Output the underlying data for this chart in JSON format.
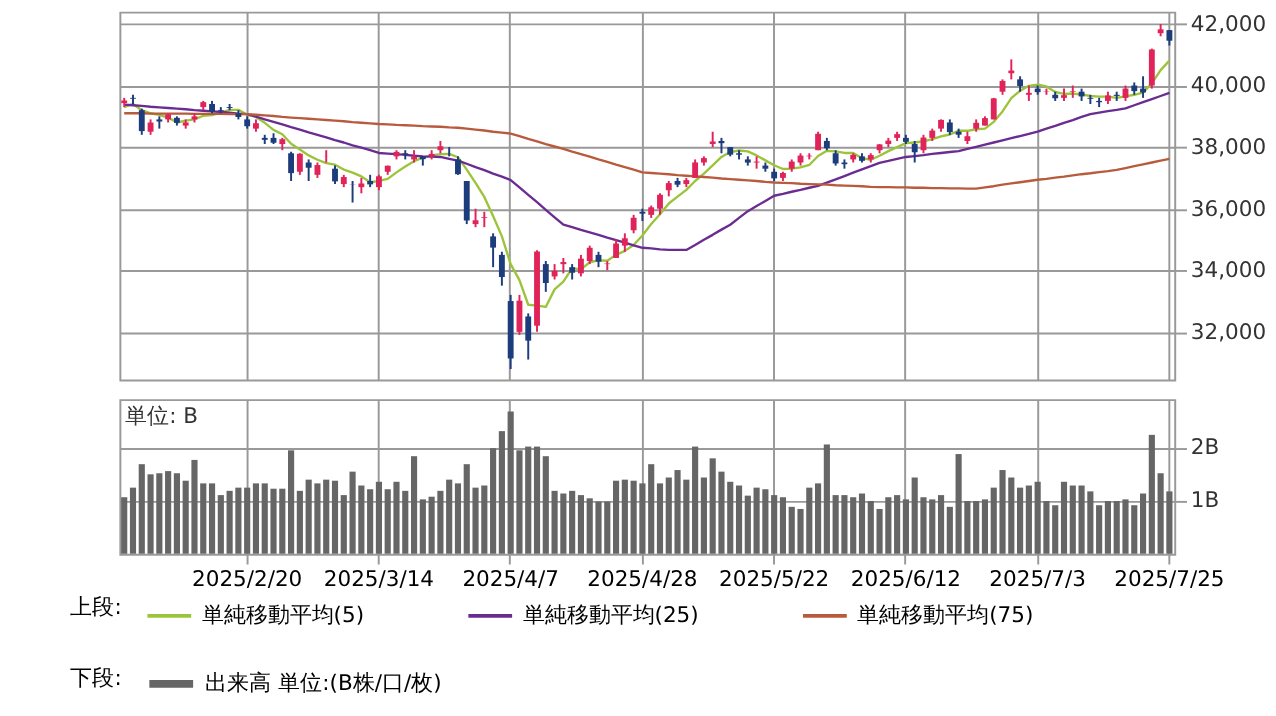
{
  "chart_data": [
    {
      "type": "candlestick",
      "legend": "bottom",
      "legend_title": "上段:",
      "grid": true,
      "tick_labels": "y",
      "categories": [
        null,
        null,
        null,
        null,
        null,
        null,
        null,
        null,
        null,
        null,
        null,
        null,
        null,
        null,
        "2025/2/20",
        null,
        null,
        null,
        null,
        null,
        null,
        null,
        null,
        null,
        null,
        null,
        null,
        null,
        null,
        "2025/3/14",
        null,
        null,
        null,
        null,
        null,
        null,
        null,
        null,
        null,
        null,
        null,
        null,
        null,
        null,
        "2025/4/7",
        null,
        null,
        null,
        null,
        null,
        null,
        null,
        null,
        null,
        null,
        null,
        null,
        null,
        null,
        "2025/4/28",
        null,
        null,
        null,
        null,
        null,
        null,
        null,
        null,
        null,
        null,
        null,
        null,
        null,
        null,
        "2025/5/22",
        null,
        null,
        null,
        null,
        null,
        null,
        null,
        null,
        null,
        null,
        null,
        null,
        null,
        null,
        "2025/6/12",
        null,
        null,
        null,
        null,
        null,
        null,
        null,
        null,
        null,
        null,
        null,
        null,
        null,
        null,
        "2025/7/3",
        null,
        null,
        null,
        null,
        null,
        null,
        null,
        null,
        null,
        null,
        null,
        null,
        null,
        null,
        "2025/7/25"
      ],
      "ylim": [
        30450,
        42400
      ],
      "yticks": [
        {
          "value": 32000,
          "label": "32,000"
        },
        {
          "value": 34000,
          "label": "34,000"
        },
        {
          "value": 36000,
          "label": "36,000"
        },
        {
          "value": 38000,
          "label": "38,000"
        },
        {
          "value": 40000,
          "label": "40,000"
        },
        {
          "value": 42000,
          "label": "42,000"
        }
      ],
      "ohlc": [
        [
          39430,
          39600,
          39300,
          39514
        ],
        [
          39600,
          39700,
          39400,
          39572
        ],
        [
          39200,
          39250,
          38400,
          38520
        ],
        [
          38500,
          38900,
          38400,
          38798
        ],
        [
          38900,
          39000,
          38600,
          38831
        ],
        [
          38900,
          39100,
          38800,
          39066
        ],
        [
          38950,
          39000,
          38700,
          38787
        ],
        [
          38700,
          38900,
          38600,
          38801
        ],
        [
          38900,
          39100,
          38800,
          39000
        ],
        [
          39300,
          39500,
          39200,
          39461
        ],
        [
          39400,
          39500,
          39100,
          39149
        ],
        [
          39200,
          39300,
          39100,
          39174
        ],
        [
          39300,
          39400,
          39200,
          39270
        ],
        [
          39100,
          39200,
          38900,
          38978
        ],
        [
          38900,
          39000,
          38600,
          38678
        ],
        [
          38600,
          38900,
          38500,
          38776
        ],
        [
          38300,
          38400,
          38100,
          38237
        ],
        [
          38300,
          38450,
          38100,
          38142
        ],
        [
          38100,
          38300,
          37900,
          38256
        ],
        [
          37800,
          37850,
          36900,
          37155
        ],
        [
          37200,
          37800,
          37100,
          37785
        ],
        [
          37500,
          37600,
          36900,
          37331
        ],
        [
          37100,
          37500,
          37000,
          37418
        ],
        [
          37700,
          37900,
          37500,
          37704
        ],
        [
          37300,
          37400,
          36800,
          36887
        ],
        [
          36800,
          37100,
          36700,
          37028
        ],
        [
          36800,
          36900,
          36200,
          36793
        ],
        [
          36700,
          37000,
          36500,
          36819
        ],
        [
          36900,
          37100,
          36700,
          36790
        ],
        [
          36700,
          37100,
          36600,
          37053
        ],
        [
          37200,
          37400,
          37100,
          37396
        ],
        [
          37700,
          37900,
          37600,
          37845
        ],
        [
          37800,
          37900,
          37600,
          37751
        ],
        [
          37600,
          37900,
          37500,
          37677
        ],
        [
          37700,
          37700,
          37400,
          37608
        ],
        [
          37700,
          37900,
          37600,
          37780
        ],
        [
          37900,
          38200,
          37800,
          38027
        ],
        [
          37800,
          38000,
          37700,
          37799
        ],
        [
          37600,
          37700,
          37100,
          37120
        ],
        [
          36900,
          36900,
          35500,
          35617
        ],
        [
          35500,
          36000,
          35400,
          35624
        ],
        [
          35700,
          35900,
          35400,
          35725
        ],
        [
          35100,
          35200,
          34100,
          34736
        ],
        [
          34500,
          34600,
          33500,
          33780
        ],
        [
          33000,
          33200,
          30792,
          31136
        ],
        [
          32000,
          33200,
          31900,
          33012
        ],
        [
          32500,
          32600,
          31100,
          31714
        ],
        [
          32200,
          34650,
          32000,
          34609
        ],
        [
          34200,
          34300,
          33300,
          33586
        ],
        [
          33800,
          34200,
          33700,
          33982
        ],
        [
          34200,
          34400,
          33900,
          34267
        ],
        [
          34100,
          34200,
          33700,
          33920
        ],
        [
          33900,
          34500,
          33800,
          34377
        ],
        [
          34300,
          34800,
          34200,
          34730
        ],
        [
          34500,
          34600,
          34100,
          34280
        ],
        [
          34200,
          34300,
          34000,
          34220
        ],
        [
          34400,
          35000,
          34400,
          34868
        ],
        [
          34800,
          35200,
          34600,
          35039
        ],
        [
          35300,
          35800,
          35200,
          35705
        ],
        [
          35900,
          36000,
          35600,
          35839
        ],
        [
          35800,
          36100,
          35700,
          36045
        ],
        [
          36000,
          36500,
          35800,
          36452
        ],
        [
          36600,
          36900,
          36400,
          36831
        ],
        [
          36900,
          37000,
          36700,
          36780
        ],
        [
          36800,
          37000,
          36700,
          36928
        ],
        [
          37000,
          37600,
          37000,
          37503
        ],
        [
          37500,
          37700,
          37400,
          37644
        ],
        [
          38100,
          38500,
          38000,
          38183
        ],
        [
          38200,
          38300,
          37800,
          38128
        ],
        [
          38000,
          38000,
          37700,
          37755
        ],
        [
          37800,
          37900,
          37600,
          37753
        ],
        [
          37600,
          37700,
          37400,
          37498
        ],
        [
          37500,
          37700,
          37300,
          37529
        ],
        [
          37400,
          37500,
          37200,
          37299
        ],
        [
          37200,
          37300,
          36900,
          36985
        ],
        [
          37000,
          37200,
          36900,
          37160
        ],
        [
          37300,
          37600,
          37200,
          37531
        ],
        [
          37500,
          37800,
          37400,
          37724
        ],
        [
          37700,
          37800,
          37600,
          37722
        ],
        [
          37900,
          38500,
          37900,
          38433
        ],
        [
          38200,
          38300,
          37900,
          37965
        ],
        [
          37800,
          37900,
          37400,
          37470
        ],
        [
          37500,
          37600,
          37300,
          37446
        ],
        [
          37600,
          37800,
          37500,
          37747
        ],
        [
          37700,
          37800,
          37500,
          37554
        ],
        [
          37600,
          37800,
          37500,
          37741
        ],
        [
          37900,
          38100,
          37800,
          38088
        ],
        [
          38100,
          38300,
          38000,
          38211
        ],
        [
          38300,
          38500,
          38200,
          38421
        ],
        [
          38300,
          38400,
          38100,
          38173
        ],
        [
          38100,
          38200,
          37500,
          37834
        ],
        [
          37900,
          38400,
          37800,
          38311
        ],
        [
          38300,
          38600,
          38200,
          38536
        ],
        [
          38600,
          38900,
          38500,
          38885
        ],
        [
          38800,
          38900,
          38400,
          38488
        ],
        [
          38500,
          38600,
          38300,
          38403
        ],
        [
          38200,
          38500,
          38100,
          38354
        ],
        [
          38600,
          38900,
          38500,
          38790
        ],
        [
          38700,
          39000,
          38700,
          38942
        ],
        [
          38900,
          39600,
          38900,
          39584
        ],
        [
          39800,
          40200,
          39700,
          40150
        ],
        [
          40400,
          40850,
          40200,
          40487
        ],
        [
          40200,
          40300,
          39800,
          39986
        ],
        [
          39700,
          40000,
          39500,
          39762
        ],
        [
          39900,
          40000,
          39700,
          39785
        ],
        [
          39800,
          39900,
          39700,
          39811
        ],
        [
          39700,
          39800,
          39500,
          39587
        ],
        [
          39600,
          39900,
          39500,
          39688
        ],
        [
          39800,
          40000,
          39600,
          39821
        ],
        [
          39800,
          39900,
          39500,
          39646
        ],
        [
          39600,
          39700,
          39400,
          39570
        ],
        [
          39500,
          39600,
          39300,
          39459
        ],
        [
          39500,
          39800,
          39400,
          39678
        ],
        [
          39700,
          39800,
          39500,
          39663
        ],
        [
          39600,
          40000,
          39500,
          39901
        ],
        [
          40000,
          40100,
          39700,
          39819
        ],
        [
          39900,
          40300,
          39600,
          39774
        ],
        [
          40000,
          41200,
          39900,
          41171
        ],
        [
          41700,
          42000,
          41600,
          41826
        ],
        [
          41800,
          41800,
          41300,
          41456
        ]
      ],
      "colors": [
        "#e0245a",
        "#1d3c7c",
        "#1d3c7c",
        "#e0245a",
        "#1d3c7c",
        "#e0245a",
        "#1d3c7c",
        "#e0245a",
        "#e0245a",
        "#e0245a",
        "#1d3c7c",
        "#1d3c7c",
        "#1d3c7c",
        "#1d3c7c",
        "#1d3c7c",
        "#e0245a",
        "#1d3c7c",
        "#1d3c7c",
        "#e0245a",
        "#1d3c7c",
        "#e0245a",
        "#1d3c7c",
        "#e0245a",
        "#e0245a",
        "#1d3c7c",
        "#e0245a",
        "#1d3c7c",
        "#e0245a",
        "#1d3c7c",
        "#e0245a",
        "#e0245a",
        "#e0245a",
        "#1d3c7c",
        "#e0245a",
        "#1d3c7c",
        "#e0245a",
        "#e0245a",
        "#1d3c7c",
        "#1d3c7c",
        "#1d3c7c",
        "#e0245a",
        "#e0245a",
        "#1d3c7c",
        "#1d3c7c",
        "#1d3c7c",
        "#e0245a",
        "#1d3c7c",
        "#e0245a",
        "#1d3c7c",
        "#e0245a",
        "#e0245a",
        "#1d3c7c",
        "#e0245a",
        "#e0245a",
        "#1d3c7c",
        "#e0245a",
        "#e0245a",
        "#e0245a",
        "#e0245a",
        "#1d3c7c",
        "#e0245a",
        "#e0245a",
        "#e0245a",
        "#1d3c7c",
        "#e0245a",
        "#e0245a",
        "#e0245a",
        "#e0245a",
        "#1d3c7c",
        "#1d3c7c",
        "#1d3c7c",
        "#1d3c7c",
        "#e0245a",
        "#1d3c7c",
        "#1d3c7c",
        "#e0245a",
        "#e0245a",
        "#e0245a",
        "#e0245a",
        "#e0245a",
        "#1d3c7c",
        "#1d3c7c",
        "#1d3c7c",
        "#e0245a",
        "#1d3c7c",
        "#e0245a",
        "#e0245a",
        "#e0245a",
        "#e0245a",
        "#1d3c7c",
        "#1d3c7c",
        "#e0245a",
        "#e0245a",
        "#e0245a",
        "#1d3c7c",
        "#1d3c7c",
        "#e0245a",
        "#e0245a",
        "#e0245a",
        "#e0245a",
        "#e0245a",
        "#e0245a",
        "#1d3c7c",
        "#e0245a",
        "#1d3c7c",
        "#e0245a",
        "#1d3c7c",
        "#e0245a",
        "#e0245a",
        "#1d3c7c",
        "#1d3c7c",
        "#1d3c7c",
        "#e0245a",
        "#1d3c7c",
        "#e0245a",
        "#1d3c7c",
        "#1d3c7c",
        "#e0245a",
        "#e0245a",
        "#1d3c7c"
      ],
      "series": [
        {
          "name": "単純移動平均(5)",
          "type": "line",
          "color": "#9cc43a",
          "values": [
            39300,
            39400,
            39200,
            39100,
            39050,
            38960,
            38800,
            38860,
            38900,
            39020,
            39040,
            39120,
            39210,
            39210,
            39050,
            38980,
            38790,
            38560,
            38420,
            38110,
            37920,
            37730,
            37590,
            37480,
            37430,
            37270,
            37170,
            37050,
            36860,
            36900,
            36970,
            37180,
            37370,
            37540,
            37660,
            37730,
            37770,
            37780,
            37670,
            37270,
            36840,
            36380,
            35760,
            35100,
            34200,
            33680,
            32880,
            32850,
            32810,
            33380,
            33630,
            34070,
            34030,
            34260,
            34320,
            34310,
            34500,
            34630,
            34820,
            35130,
            35500,
            35820,
            36170,
            36390,
            36610,
            36900,
            37140,
            37410,
            37680,
            37840,
            37890,
            37860,
            37730,
            37570,
            37410,
            37290,
            37300,
            37340,
            37420,
            37710,
            37880,
            37860,
            37810,
            37810,
            37640,
            37590,
            37720,
            37870,
            38000,
            38130,
            38150,
            38190,
            38260,
            38350,
            38410,
            38530,
            38530,
            38580,
            38600,
            38820,
            39160,
            39590,
            39830,
            39990,
            40030,
            39970,
            39790,
            39730,
            39740,
            39710,
            39660,
            39640,
            39640,
            39600,
            39650,
            39700,
            39770,
            40070,
            40500,
            40810
          ]
        },
        {
          "name": "単純移動平均(25)",
          "type": "line",
          "color": "#6a2c91",
          "values": [
            39380,
            39360,
            39340,
            39310,
            39290,
            39270,
            39250,
            39230,
            39200,
            39180,
            39160,
            39140,
            39120,
            39090,
            39070,
            38990,
            38900,
            38820,
            38740,
            38650,
            38570,
            38480,
            38400,
            38320,
            38230,
            38150,
            38060,
            37980,
            37900,
            37810,
            37790,
            37770,
            37750,
            37720,
            37700,
            37690,
            37680,
            37620,
            37560,
            37460,
            37350,
            37250,
            37140,
            37040,
            36930,
            36690,
            36450,
            36210,
            35960,
            35720,
            35480,
            35400,
            35310,
            35230,
            35150,
            35060,
            34980,
            34900,
            34810,
            34730,
            34710,
            34680,
            34660,
            34660,
            34660,
            34820,
            34990,
            35150,
            35320,
            35480,
            35700,
            35920,
            36090,
            36250,
            36420,
            36480,
            36550,
            36610,
            36680,
            36740,
            36850,
            36950,
            37060,
            37170,
            37280,
            37380,
            37490,
            37550,
            37620,
            37680,
            37710,
            37740,
            37780,
            37810,
            37840,
            37870,
            37940,
            38010,
            38080,
            38150,
            38220,
            38290,
            38360,
            38430,
            38500,
            38600,
            38690,
            38790,
            38880,
            38980,
            39070,
            39120,
            39170,
            39210,
            39260,
            39360,
            39460,
            39560,
            39660,
            39760
          ]
        },
        {
          "name": "単純移動平均(75)",
          "type": "line",
          "color": "#b85a3c",
          "values": [
            39100,
            39100,
            39100,
            39090,
            39090,
            39090,
            39090,
            39090,
            39080,
            39080,
            39080,
            39080,
            39070,
            39070,
            39070,
            39050,
            39030,
            39010,
            38980,
            38960,
            38940,
            38920,
            38900,
            38880,
            38860,
            38840,
            38810,
            38790,
            38770,
            38750,
            38740,
            38720,
            38710,
            38700,
            38680,
            38670,
            38660,
            38640,
            38630,
            38600,
            38570,
            38540,
            38500,
            38470,
            38440,
            38360,
            38270,
            38190,
            38100,
            38020,
            37940,
            37850,
            37770,
            37690,
            37600,
            37520,
            37430,
            37350,
            37270,
            37180,
            37160,
            37140,
            37120,
            37090,
            37070,
            37050,
            37030,
            37010,
            36980,
            36960,
            36940,
            36920,
            36900,
            36870,
            36850,
            36840,
            36830,
            36810,
            36800,
            36790,
            36780,
            36760,
            36750,
            36740,
            36730,
            36710,
            36700,
            36700,
            36690,
            36690,
            36680,
            36680,
            36670,
            36670,
            36660,
            36660,
            36650,
            36650,
            36690,
            36730,
            36780,
            36820,
            36860,
            36900,
            36940,
            36970,
            37010,
            37040,
            37080,
            37120,
            37150,
            37190,
            37220,
            37260,
            37320,
            37380,
            37440,
            37500,
            37560,
            37620
          ]
        }
      ]
    },
    {
      "type": "bar",
      "legend": "bottom",
      "legend_title": "下段:",
      "grid": true,
      "annotations": [
        "単位: B"
      ],
      "categories": [
        null,
        null,
        null,
        null,
        null,
        null,
        null,
        null,
        null,
        null,
        null,
        null,
        null,
        null,
        "2025/2/20",
        null,
        null,
        null,
        null,
        null,
        null,
        null,
        null,
        null,
        null,
        null,
        null,
        null,
        null,
        "2025/3/14",
        null,
        null,
        null,
        null,
        null,
        null,
        null,
        null,
        null,
        null,
        null,
        null,
        null,
        null,
        "2025/4/7",
        null,
        null,
        null,
        null,
        null,
        null,
        null,
        null,
        null,
        null,
        null,
        null,
        null,
        null,
        "2025/4/28",
        null,
        null,
        null,
        null,
        null,
        null,
        null,
        null,
        null,
        null,
        null,
        null,
        null,
        null,
        "2025/5/22",
        null,
        null,
        null,
        null,
        null,
        null,
        null,
        null,
        null,
        null,
        null,
        null,
        null,
        null,
        "2025/6/12",
        null,
        null,
        null,
        null,
        null,
        null,
        null,
        null,
        null,
        null,
        null,
        null,
        null,
        null,
        "2025/7/3",
        null,
        null,
        null,
        null,
        null,
        null,
        null,
        null,
        null,
        null,
        null,
        null,
        null,
        null,
        "2025/7/25"
      ],
      "ylim": [
        0,
        2.9
      ],
      "yticks": [
        {
          "value": 1,
          "label": "1B"
        },
        {
          "value": 2,
          "label": "2B"
        }
      ],
      "series": [
        {
          "name": "出来高 単位:(B株/口/枚)",
          "color": "#666666",
          "values": [
            1.06,
            1.24,
            1.68,
            1.49,
            1.51,
            1.55,
            1.51,
            1.37,
            1.76,
            1.32,
            1.32,
            1.1,
            1.18,
            1.24,
            1.24,
            1.32,
            1.32,
            1.22,
            1.22,
            1.94,
            1.18,
            1.39,
            1.32,
            1.39,
            1.37,
            1.1,
            1.54,
            1.28,
            1.21,
            1.35,
            1.21,
            1.35,
            1.18,
            1.83,
            1.02,
            1.07,
            1.18,
            1.39,
            1.32,
            1.68,
            1.24,
            1.28,
            1.98,
            2.3,
            2.67,
            1.94,
            2.01,
            2.01,
            1.83,
            1.18,
            1.13,
            1.18,
            1.1,
            1.04,
            0.98,
            0.98,
            1.37,
            1.39,
            1.37,
            1.32,
            1.68,
            1.32,
            1.43,
            1.57,
            1.39,
            2.01,
            1.43,
            1.79,
            1.54,
            1.35,
            1.28,
            1.09,
            1.24,
            1.21,
            1.1,
            1.06,
            0.88,
            0.84,
            1.24,
            1.32,
            2.05,
            1.1,
            1.1,
            1.06,
            1.13,
            0.99,
            0.84,
            1.06,
            1.1,
            1.02,
            1.43,
            1.06,
            1.02,
            1.1,
            0.88,
            1.87,
            0.99,
            0.99,
            1.02,
            1.24,
            1.57,
            1.43,
            1.24,
            1.28,
            1.35,
            0.99,
            0.91,
            1.35,
            1.28,
            1.28,
            1.17,
            0.91,
            0.99,
            0.99,
            1.02,
            0.91,
            1.13,
            2.23,
            1.51,
            1.17
          ]
        }
      ]
    }
  ]
}
